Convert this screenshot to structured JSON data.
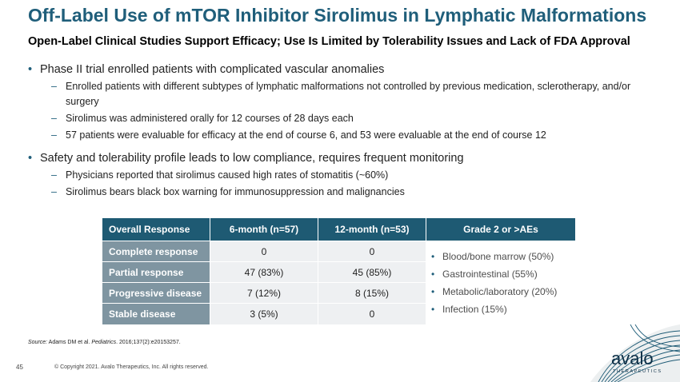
{
  "header": {
    "title": "Off-Label Use of mTOR Inhibitor Sirolimus in Lymphatic Malformations",
    "subtitle": "Open-Label Clinical Studies Support Efficacy; Use Is Limited by Tolerability Issues and Lack of FDA Approval"
  },
  "bullets": [
    {
      "text": "Phase II trial enrolled patients with complicated vascular anomalies",
      "sub": [
        "Enrolled patients with different subtypes of lymphatic malformations not controlled by previous medication, sclerotherapy, and/or surgery",
        "Sirolimus was administered orally for 12 courses of 28 days each",
        "57 patients were evaluable for efficacy at the end of course 6, and 53 were evaluable at the end of course 12"
      ]
    },
    {
      "text": "Safety and tolerability profile leads to low compliance, requires frequent monitoring",
      "sub": [
        "Physicians reported that sirolimus caused high rates of stomatitis (~60%)",
        "Sirolimus bears black box warning for immunosuppression and malignancies"
      ]
    }
  ],
  "table": {
    "headers": [
      "Overall Response",
      "6-month (n=57)",
      "12-month (n=53)",
      "Grade 2 or >AEs"
    ],
    "rows": [
      {
        "label": "Complete response",
        "m6": "0",
        "m12": "0"
      },
      {
        "label": "Partial response",
        "m6": "47 (83%)",
        "m12": "45 (85%)"
      },
      {
        "label": "Progressive disease",
        "m6": "7 (12%)",
        "m12": "8 (15%)"
      },
      {
        "label": "Stable disease",
        "m6": "3 (5%)",
        "m12": "0"
      }
    ],
    "aes": [
      "Blood/bone marrow (50%)",
      "Gastrointestinal (55%)",
      "Metabolic/laboratory (20%)",
      "Infection (15%)"
    ]
  },
  "source": {
    "prefix": "Source:",
    "text_before": " Adams DM et al. ",
    "journal": "Pediatrics",
    "text_after": ". 2016;137(2):e20153257."
  },
  "footer": {
    "page_number": "45",
    "copyright": "© Copyright 2021. Avalo Therapeutics, Inc. All rights reserved."
  },
  "logo": {
    "name": "avalo",
    "tagline": "THERAPEUTICS",
    "colors": {
      "dark": "#0b2d45",
      "accent": "#1f5e7a"
    }
  },
  "colors": {
    "title": "#1f5e7a",
    "table_header": "#1e5a73",
    "row_label": "#7f95a1",
    "cell_bg": "#eef0f2"
  }
}
